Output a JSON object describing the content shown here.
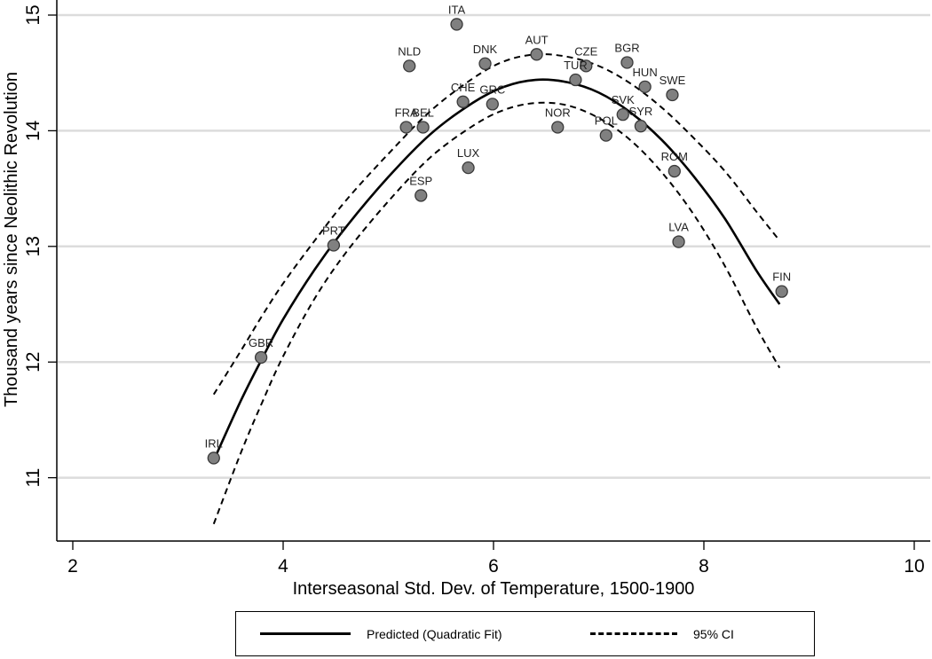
{
  "chart_data": {
    "type": "scatter",
    "title": "",
    "xlabel": "Interseasonal Std. Dev. of Temperature, 1500-1900",
    "ylabel": "Thousand years since Neolithic Revolution",
    "xlim": [
      1.85,
      10.15
    ],
    "ylim": [
      10.45,
      15.1
    ],
    "xticks": [
      2,
      4,
      6,
      8,
      10
    ],
    "yticks": [
      11,
      12,
      13,
      14,
      15
    ],
    "grid": "horizontal",
    "legend_position": "bottom",
    "points": [
      {
        "label": "ITA",
        "x": 5.65,
        "y": 14.92
      },
      {
        "label": "NLD",
        "x": 5.2,
        "y": 14.56
      },
      {
        "label": "DNK",
        "x": 5.92,
        "y": 14.58
      },
      {
        "label": "AUT",
        "x": 6.41,
        "y": 14.66
      },
      {
        "label": "CZE",
        "x": 6.88,
        "y": 14.56
      },
      {
        "label": "TUR",
        "x": 6.78,
        "y": 14.44
      },
      {
        "label": "BGR",
        "x": 7.27,
        "y": 14.59
      },
      {
        "label": "HUN",
        "x": 7.44,
        "y": 14.38
      },
      {
        "label": "SWE",
        "x": 7.7,
        "y": 14.31
      },
      {
        "label": "CHE",
        "x": 5.71,
        "y": 14.25
      },
      {
        "label": "GRC",
        "x": 5.99,
        "y": 14.23
      },
      {
        "label": "SVK",
        "x": 7.23,
        "y": 14.14
      },
      {
        "label": "SYR",
        "x": 7.4,
        "y": 14.04
      },
      {
        "label": "FRA",
        "x": 5.17,
        "y": 14.03
      },
      {
        "label": "BEL",
        "x": 5.33,
        "y": 14.03
      },
      {
        "label": "NOR",
        "x": 6.61,
        "y": 14.03
      },
      {
        "label": "POL",
        "x": 7.07,
        "y": 13.96
      },
      {
        "label": "LUX",
        "x": 5.76,
        "y": 13.68
      },
      {
        "label": "ROM",
        "x": 7.72,
        "y": 13.65
      },
      {
        "label": "ESP",
        "x": 5.31,
        "y": 13.44
      },
      {
        "label": "PRT",
        "x": 4.48,
        "y": 13.01
      },
      {
        "label": "LVA",
        "x": 7.76,
        "y": 13.04
      },
      {
        "label": "FIN",
        "x": 8.74,
        "y": 12.61
      },
      {
        "label": "GBR",
        "x": 3.79,
        "y": 12.04
      },
      {
        "label": "IRL",
        "x": 3.34,
        "y": 11.17
      }
    ],
    "series": [
      {
        "name": "Predicted (Quadratic Fit)",
        "style": "solid",
        "x": [
          3.34,
          3.6,
          3.8,
          4.0,
          4.3,
          4.6,
          5.0,
          5.4,
          5.8,
          6.1,
          6.4,
          6.7,
          7.0,
          7.3,
          7.6,
          7.9,
          8.2,
          8.5,
          8.72
        ],
        "y": [
          11.15,
          11.67,
          12.03,
          12.37,
          12.8,
          13.17,
          13.6,
          13.97,
          14.24,
          14.38,
          14.44,
          14.42,
          14.33,
          14.16,
          13.92,
          13.61,
          13.24,
          12.79,
          12.5
        ]
      },
      {
        "name": "95% CI (upper)",
        "style": "dashed",
        "x": [
          3.34,
          3.6,
          3.8,
          4.0,
          4.3,
          4.6,
          5.0,
          5.4,
          5.8,
          6.1,
          6.4,
          6.7,
          7.0,
          7.3,
          7.6,
          7.9,
          8.2,
          8.5,
          8.72
        ],
        "y": [
          11.72,
          12.1,
          12.4,
          12.68,
          13.05,
          13.4,
          13.8,
          14.17,
          14.45,
          14.6,
          14.66,
          14.64,
          14.56,
          14.41,
          14.2,
          13.94,
          13.65,
          13.3,
          13.05
        ]
      },
      {
        "name": "95% CI (lower)",
        "style": "dashed",
        "x": [
          3.34,
          3.6,
          3.8,
          4.0,
          4.3,
          4.6,
          5.0,
          5.4,
          5.8,
          6.1,
          6.4,
          6.7,
          7.0,
          7.3,
          7.6,
          7.9,
          8.2,
          8.5,
          8.72
        ],
        "y": [
          10.6,
          11.22,
          11.65,
          12.05,
          12.55,
          12.95,
          13.39,
          13.77,
          14.04,
          14.18,
          14.24,
          14.22,
          14.11,
          13.92,
          13.64,
          13.28,
          12.83,
          12.3,
          11.95
        ]
      }
    ]
  },
  "legend": {
    "items": [
      {
        "label": "Predicted (Quadratic Fit)",
        "style": "solid"
      },
      {
        "label": "95% CI",
        "style": "dashed"
      }
    ]
  },
  "colors": {
    "marker_fill": "#808080",
    "marker_stroke": "#3a3a3a",
    "gridline": "#dcdcdc",
    "line": "#000000"
  }
}
